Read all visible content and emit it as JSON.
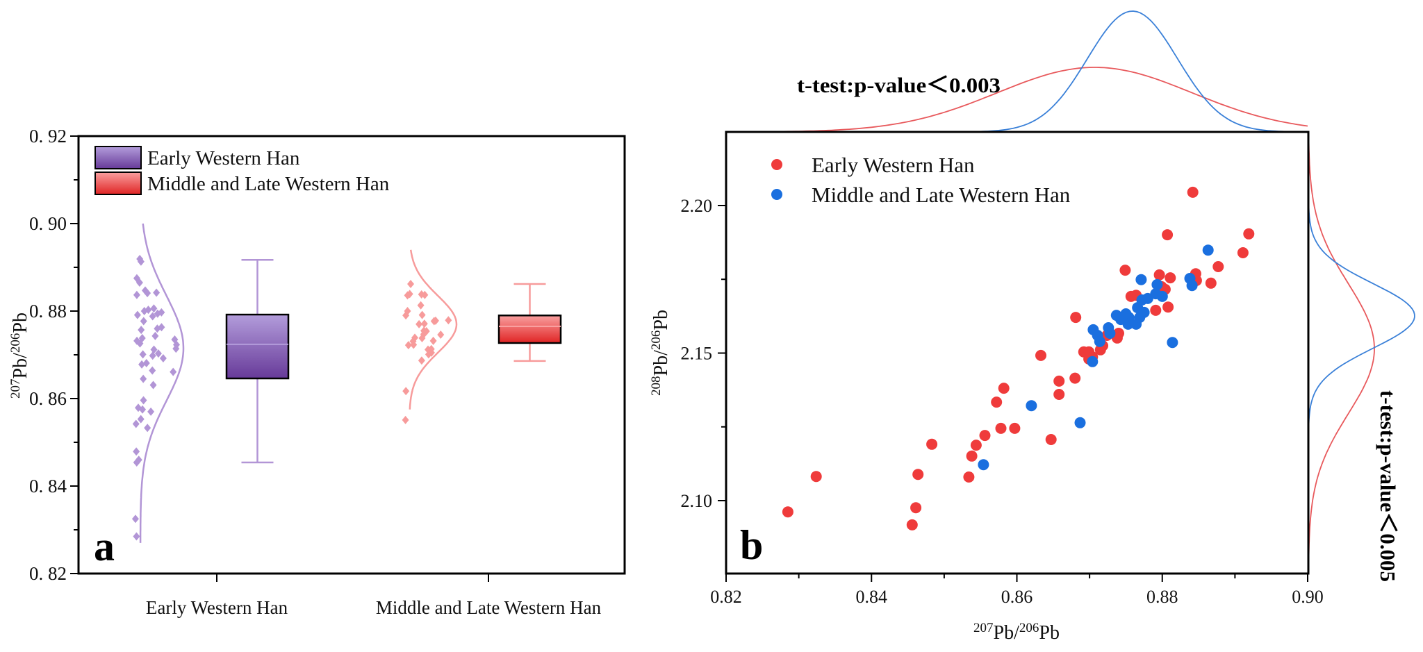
{
  "chart_data": [
    {
      "panel_label": "a",
      "type": "box",
      "ylabel": {
        "sup1": "207",
        "el1": "Pb/",
        "sup2": "206",
        "el2": "Pb"
      },
      "ylim": [
        0.82,
        0.92
      ],
      "yticks": [
        "0. 82",
        "0. 84",
        "0. 86",
        "0. 88",
        "0. 90",
        "0. 92"
      ],
      "categories": [
        "Early Western Han",
        "Middle and Late Western Han"
      ],
      "legend": {
        "placement": "top-left",
        "entries": [
          "Early Western Han",
          "Middle and Late Western Han"
        ]
      },
      "series": [
        {
          "name": "Early Western Han",
          "color_light": "#b39ddb",
          "color_dark": "#673a99",
          "point_color": "#b295d6",
          "box": {
            "whisker_high": 0.8917,
            "q3": 0.8792,
            "median": 0.8724,
            "q1": 0.8646,
            "whisker_low": 0.8454
          },
          "density_fit": {
            "mean": 0.8715,
            "sd": 0.012,
            "range": [
              0.827,
              0.9
            ]
          },
          "points": [
            0.8919,
            0.8913,
            0.8875,
            0.8865,
            0.8847,
            0.8841,
            0.8837,
            0.8842,
            0.8806,
            0.8803,
            0.88,
            0.8797,
            0.8794,
            0.8791,
            0.8788,
            0.8777,
            0.8763,
            0.8757,
            0.876,
            0.8743,
            0.8738,
            0.8732,
            0.8735,
            0.8723,
            0.8726,
            0.8712,
            0.8714,
            0.8701,
            0.8698,
            0.8703,
            0.8692,
            0.8681,
            0.8678,
            0.8661,
            0.8664,
            0.8645,
            0.8631,
            0.8596,
            0.8579,
            0.857,
            0.8575,
            0.8553,
            0.8542,
            0.8533,
            0.8479,
            0.846,
            0.8454,
            0.8325,
            0.8285
          ]
        },
        {
          "name": "Middle and Late Western Han",
          "color_light": "#f9a0a0",
          "color_dark": "#e02424",
          "point_color": "#f79b9b",
          "box": {
            "whisker_high": 0.8862,
            "q3": 0.879,
            "median": 0.8765,
            "q1": 0.8727,
            "whisker_low": 0.8686
          },
          "density_fit": {
            "mean": 0.877,
            "sd": 0.0065,
            "range": [
              0.8575,
              0.894
            ]
          },
          "points": [
            0.8862,
            0.8837,
            0.8838,
            0.8836,
            0.8839,
            0.8813,
            0.88,
            0.879,
            0.8791,
            0.8778,
            0.8777,
            0.8779,
            0.877,
            0.8771,
            0.8754,
            0.8755,
            0.8746,
            0.8747,
            0.8738,
            0.8739,
            0.8731,
            0.8732,
            0.8722,
            0.8723,
            0.8712,
            0.8713,
            0.8705,
            0.8701,
            0.8687,
            0.8617,
            0.8551
          ]
        }
      ]
    },
    {
      "panel_label": "b",
      "type": "scatter",
      "xlabel": {
        "sup1": "207",
        "el1": "Pb/",
        "sup2": "206",
        "el2": "Pb"
      },
      "ylabel": {
        "sup1": "208",
        "el1": "Pb/",
        "sup2": "206",
        "el2": "Pb"
      },
      "xlim": [
        0.82,
        0.9
      ],
      "ylim": [
        2.075,
        2.225
      ],
      "xticks": [
        "0.82",
        "0.84",
        "0.86",
        "0.88",
        "0.90"
      ],
      "yticks": [
        "2.10",
        "2.15",
        "2.20"
      ],
      "legend": {
        "placement": "top-left",
        "entries": [
          "Early Western Han",
          "Middle and Late Western Han"
        ]
      },
      "annotations": {
        "top": "t-test:p-value＜0.003",
        "right": "t-test:p-value＜0.005"
      },
      "series": [
        {
          "name": "Early Western Han",
          "color": "#ef3b3b",
          "x_density_fit": {
            "mean": 0.8707,
            "sd": 0.0134
          },
          "y_density_fit": {
            "mean": 2.1515,
            "sd": 0.022
          },
          "points": [
            [
              0.8285,
              2.0962
            ],
            [
              0.8324,
              2.1082
            ],
            [
              0.8456,
              2.0918
            ],
            [
              0.8461,
              2.0976
            ],
            [
              0.8464,
              2.1089
            ],
            [
              0.8483,
              2.1191
            ],
            [
              0.8534,
              2.108
            ],
            [
              0.8538,
              2.1151
            ],
            [
              0.8544,
              2.1188
            ],
            [
              0.8556,
              2.1221
            ],
            [
              0.8578,
              2.1245
            ],
            [
              0.8597,
              2.1245
            ],
            [
              0.8572,
              2.1334
            ],
            [
              0.8582,
              2.1381
            ],
            [
              0.8633,
              2.1492
            ],
            [
              0.8647,
              2.1207
            ],
            [
              0.8658,
              2.1405
            ],
            [
              0.8658,
              2.136
            ],
            [
              0.868,
              2.1415
            ],
            [
              0.8842,
              2.2045
            ],
            [
              0.8807,
              2.1901
            ],
            [
              0.8919,
              2.1904
            ],
            [
              0.8911,
              2.184
            ],
            [
              0.8877,
              2.1793
            ],
            [
              0.8749,
              2.1781
            ],
            [
              0.8796,
              2.1765
            ],
            [
              0.8811,
              2.1755
            ],
            [
              0.8846,
              2.1769
            ],
            [
              0.8847,
              2.1746
            ],
            [
              0.8867,
              2.1737
            ],
            [
              0.8681,
              2.1621
            ],
            [
              0.8808,
              2.1656
            ],
            [
              0.8791,
              2.1645
            ],
            [
              0.8804,
              2.1716
            ],
            [
              0.8799,
              2.1725
            ],
            [
              0.8757,
              2.1692
            ],
            [
              0.8764,
              2.1696
            ],
            [
              0.874,
              2.1567
            ],
            [
              0.8738,
              2.1551
            ],
            [
              0.8724,
              2.156
            ],
            [
              0.8715,
              2.1511
            ],
            [
              0.8718,
              2.1525
            ],
            [
              0.8692,
              2.1504
            ],
            [
              0.8699,
              2.1504
            ],
            [
              0.8699,
              2.148
            ],
            [
              0.8704,
              2.1487
            ]
          ]
        },
        {
          "name": "Middle and Late Western Han",
          "color": "#1a6fdf",
          "x_density_fit": {
            "mean": 0.8759,
            "sd": 0.0062
          },
          "y_density_fit": {
            "mean": 2.1626,
            "sd": 0.011
          },
          "points": [
            [
              0.8554,
              2.1122
            ],
            [
              0.862,
              2.1322
            ],
            [
              0.8687,
              2.1264
            ],
            [
              0.8863,
              2.1849
            ],
            [
              0.8771,
              2.1749
            ],
            [
              0.8838,
              2.1753
            ],
            [
              0.8841,
              2.1729
            ],
            [
              0.8814,
              2.1536
            ],
            [
              0.8704,
              2.1471
            ],
            [
              0.8705,
              2.1579
            ],
            [
              0.8711,
              2.156
            ],
            [
              0.8714,
              2.1539
            ],
            [
              0.8726,
              2.1586
            ],
            [
              0.8728,
              2.1567
            ],
            [
              0.8737,
              2.1628
            ],
            [
              0.8743,
              2.1614
            ],
            [
              0.875,
              2.1633
            ],
            [
              0.8754,
              2.1621
            ],
            [
              0.8753,
              2.1598
            ],
            [
              0.8764,
              2.1598
            ],
            [
              0.8766,
              2.1654
            ],
            [
              0.8772,
              2.168
            ],
            [
              0.8775,
              2.1638
            ],
            [
              0.878,
              2.1685
            ],
            [
              0.8769,
              2.1621
            ],
            [
              0.8793,
              2.1732
            ],
            [
              0.8791,
              2.1701
            ],
            [
              0.88,
              2.1692
            ]
          ]
        }
      ]
    }
  ]
}
